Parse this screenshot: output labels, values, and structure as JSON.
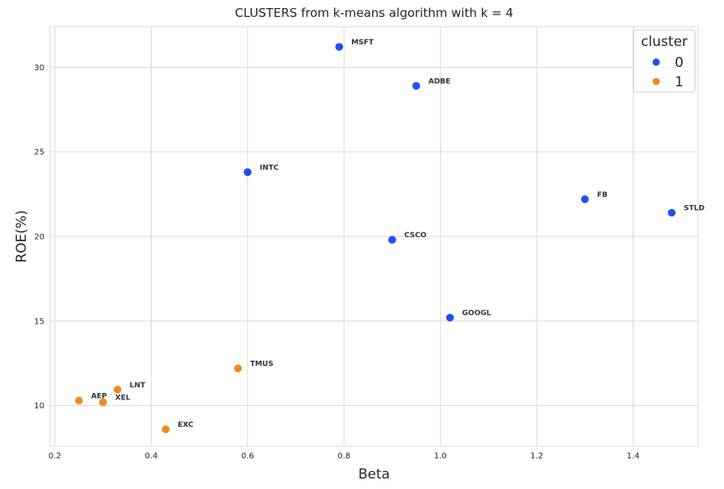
{
  "chart_data": {
    "type": "scatter",
    "title": "CLUSTERS from k-means algorithm with k = 4",
    "xlabel": "Beta",
    "ylabel": "ROE(%)",
    "xlim": [
      0.19,
      1.535
    ],
    "ylim": [
      7.6,
      32.4
    ],
    "xticks": [
      0.2,
      0.4,
      0.6,
      0.8,
      1.0,
      1.2,
      1.4
    ],
    "xtick_labels": [
      "0.2",
      "0.4",
      "0.6",
      "0.8",
      "1.0",
      "1.2",
      "1.4"
    ],
    "yticks": [
      10,
      15,
      20,
      25,
      30
    ],
    "ytick_labels": [
      "10",
      "15",
      "20",
      "25",
      "30"
    ],
    "grid": true,
    "legend": {
      "title": "cluster",
      "placement": "top-right",
      "entries": [
        {
          "label": "0",
          "color": "#1f4ef5"
        },
        {
          "label": "1",
          "color": "#f28a1e"
        }
      ]
    },
    "points": [
      {
        "label": "MSFT",
        "x": 0.79,
        "y": 31.2,
        "cluster": "0"
      },
      {
        "label": "ADBE",
        "x": 0.95,
        "y": 28.9,
        "cluster": "0"
      },
      {
        "label": "INTC",
        "x": 0.6,
        "y": 23.8,
        "cluster": "0"
      },
      {
        "label": "FB",
        "x": 1.3,
        "y": 22.2,
        "cluster": "0"
      },
      {
        "label": "STLD",
        "x": 1.48,
        "y": 21.4,
        "cluster": "0"
      },
      {
        "label": "CSCO",
        "x": 0.9,
        "y": 19.8,
        "cluster": "0"
      },
      {
        "label": "GOOGL",
        "x": 1.02,
        "y": 15.2,
        "cluster": "0"
      },
      {
        "label": "TMUS",
        "x": 0.58,
        "y": 12.2,
        "cluster": "1"
      },
      {
        "label": "LNT",
        "x": 0.33,
        "y": 10.95,
        "cluster": "1"
      },
      {
        "label": "AEP",
        "x": 0.25,
        "y": 10.3,
        "cluster": "1"
      },
      {
        "label": "XEL",
        "x": 0.3,
        "y": 10.2,
        "cluster": "1"
      },
      {
        "label": "EXC",
        "x": 0.43,
        "y": 8.6,
        "cluster": "1"
      }
    ]
  }
}
